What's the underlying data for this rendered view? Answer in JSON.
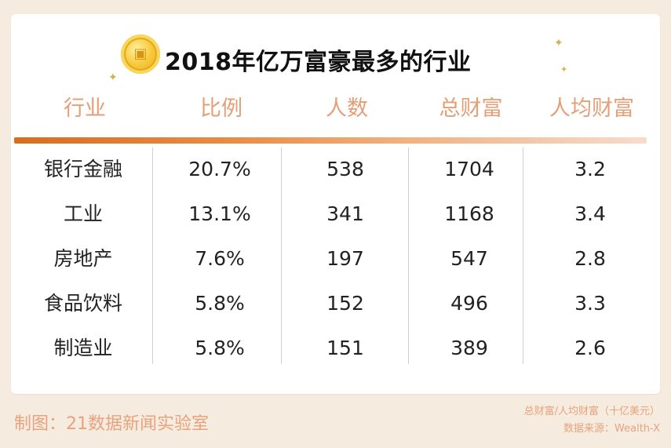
{
  "title": "2018年亿万富豪最多的行业",
  "colors": {
    "header_text": "#e59f77",
    "bar_start": "#d96d1e",
    "bar_end": "#f8dccb",
    "footer_text": "#e7a27e"
  },
  "icons": [
    "coin-icon",
    "sparkle-icon"
  ],
  "chart_data": {
    "type": "table",
    "title": "2018年亿万富豪最多的行业",
    "columns": [
      "行业",
      "比例",
      "人数",
      "总财富",
      "人均财富"
    ],
    "rows": [
      [
        "银行金融",
        "20.7%",
        "538",
        "1704",
        "3.2"
      ],
      [
        "工业",
        "13.1%",
        "341",
        "1168",
        "3.4"
      ],
      [
        "房地产",
        "7.6%",
        "197",
        "547",
        "2.8"
      ],
      [
        "食品饮料",
        "5.8%",
        "152",
        "496",
        "3.3"
      ],
      [
        "制造业",
        "5.8%",
        "151",
        "389",
        "2.6"
      ]
    ]
  },
  "footer": {
    "credit": "制图：21数据新闻实验室",
    "unit_note": "总财富/人均财富（十亿美元）",
    "source": "数据来源：Wealth-X"
  }
}
